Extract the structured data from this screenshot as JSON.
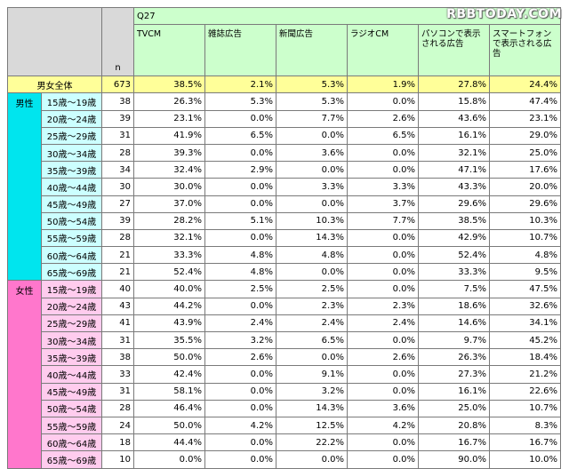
{
  "watermark": "RBBTODAY.COM",
  "chart_data": {
    "type": "table",
    "question": "Q27",
    "n_label": "n",
    "columns": [
      "TVCM",
      "雑誌広告",
      "新聞広告",
      "ラジオCM",
      "パソコンで表示される広告",
      "スマートフォンで表示される広告"
    ],
    "total": {
      "label": "男女全体",
      "n": "673",
      "values": [
        "38.5%",
        "2.1%",
        "5.3%",
        "1.9%",
        "27.8%",
        "24.4%"
      ]
    },
    "groups": [
      {
        "label": "男性",
        "rows": [
          {
            "age": "15歳～19歳",
            "n": "38",
            "values": [
              "26.3%",
              "5.3%",
              "5.3%",
              "0.0%",
              "15.8%",
              "47.4%"
            ]
          },
          {
            "age": "20歳～24歳",
            "n": "39",
            "values": [
              "23.1%",
              "0.0%",
              "7.7%",
              "2.6%",
              "43.6%",
              "23.1%"
            ]
          },
          {
            "age": "25歳～29歳",
            "n": "31",
            "values": [
              "41.9%",
              "6.5%",
              "0.0%",
              "6.5%",
              "16.1%",
              "29.0%"
            ]
          },
          {
            "age": "30歳～34歳",
            "n": "28",
            "values": [
              "39.3%",
              "0.0%",
              "3.6%",
              "0.0%",
              "32.1%",
              "25.0%"
            ]
          },
          {
            "age": "35歳～39歳",
            "n": "34",
            "values": [
              "32.4%",
              "2.9%",
              "0.0%",
              "0.0%",
              "47.1%",
              "17.6%"
            ]
          },
          {
            "age": "40歳～44歳",
            "n": "30",
            "values": [
              "30.0%",
              "0.0%",
              "3.3%",
              "3.3%",
              "43.3%",
              "20.0%"
            ]
          },
          {
            "age": "45歳～49歳",
            "n": "27",
            "values": [
              "37.0%",
              "0.0%",
              "0.0%",
              "3.7%",
              "29.6%",
              "29.6%"
            ]
          },
          {
            "age": "50歳～54歳",
            "n": "39",
            "values": [
              "28.2%",
              "5.1%",
              "10.3%",
              "7.7%",
              "38.5%",
              "10.3%"
            ]
          },
          {
            "age": "55歳～59歳",
            "n": "28",
            "values": [
              "32.1%",
              "0.0%",
              "14.3%",
              "0.0%",
              "42.9%",
              "10.7%"
            ]
          },
          {
            "age": "60歳～64歳",
            "n": "21",
            "values": [
              "33.3%",
              "4.8%",
              "4.8%",
              "0.0%",
              "52.4%",
              "4.8%"
            ]
          },
          {
            "age": "65歳～69歳",
            "n": "21",
            "values": [
              "52.4%",
              "4.8%",
              "0.0%",
              "0.0%",
              "33.3%",
              "9.5%"
            ]
          }
        ]
      },
      {
        "label": "女性",
        "rows": [
          {
            "age": "15歳～19歳",
            "n": "40",
            "values": [
              "40.0%",
              "2.5%",
              "2.5%",
              "0.0%",
              "7.5%",
              "47.5%"
            ]
          },
          {
            "age": "20歳～24歳",
            "n": "43",
            "values": [
              "44.2%",
              "0.0%",
              "2.3%",
              "2.3%",
              "18.6%",
              "32.6%"
            ]
          },
          {
            "age": "25歳～29歳",
            "n": "41",
            "values": [
              "43.9%",
              "2.4%",
              "2.4%",
              "2.4%",
              "14.6%",
              "34.1%"
            ]
          },
          {
            "age": "30歳～34歳",
            "n": "31",
            "values": [
              "35.5%",
              "3.2%",
              "6.5%",
              "0.0%",
              "9.7%",
              "45.2%"
            ]
          },
          {
            "age": "35歳～39歳",
            "n": "38",
            "values": [
              "50.0%",
              "2.6%",
              "0.0%",
              "2.6%",
              "26.3%",
              "18.4%"
            ]
          },
          {
            "age": "40歳～44歳",
            "n": "33",
            "values": [
              "42.4%",
              "0.0%",
              "9.1%",
              "0.0%",
              "27.3%",
              "21.2%"
            ]
          },
          {
            "age": "45歳～49歳",
            "n": "31",
            "values": [
              "58.1%",
              "0.0%",
              "3.2%",
              "0.0%",
              "16.1%",
              "22.6%"
            ]
          },
          {
            "age": "50歳～54歳",
            "n": "28",
            "values": [
              "46.4%",
              "0.0%",
              "14.3%",
              "3.6%",
              "25.0%",
              "10.7%"
            ]
          },
          {
            "age": "55歳～59歳",
            "n": "24",
            "values": [
              "50.0%",
              "4.2%",
              "12.5%",
              "4.2%",
              "20.8%",
              "8.3%"
            ]
          },
          {
            "age": "60歳～64歳",
            "n": "18",
            "values": [
              "44.4%",
              "0.0%",
              "22.2%",
              "0.0%",
              "16.7%",
              "16.7%"
            ]
          },
          {
            "age": "65歳～69歳",
            "n": "10",
            "values": [
              "0.0%",
              "0.0%",
              "0.0%",
              "0.0%",
              "90.0%",
              "10.0%"
            ]
          }
        ]
      }
    ]
  }
}
